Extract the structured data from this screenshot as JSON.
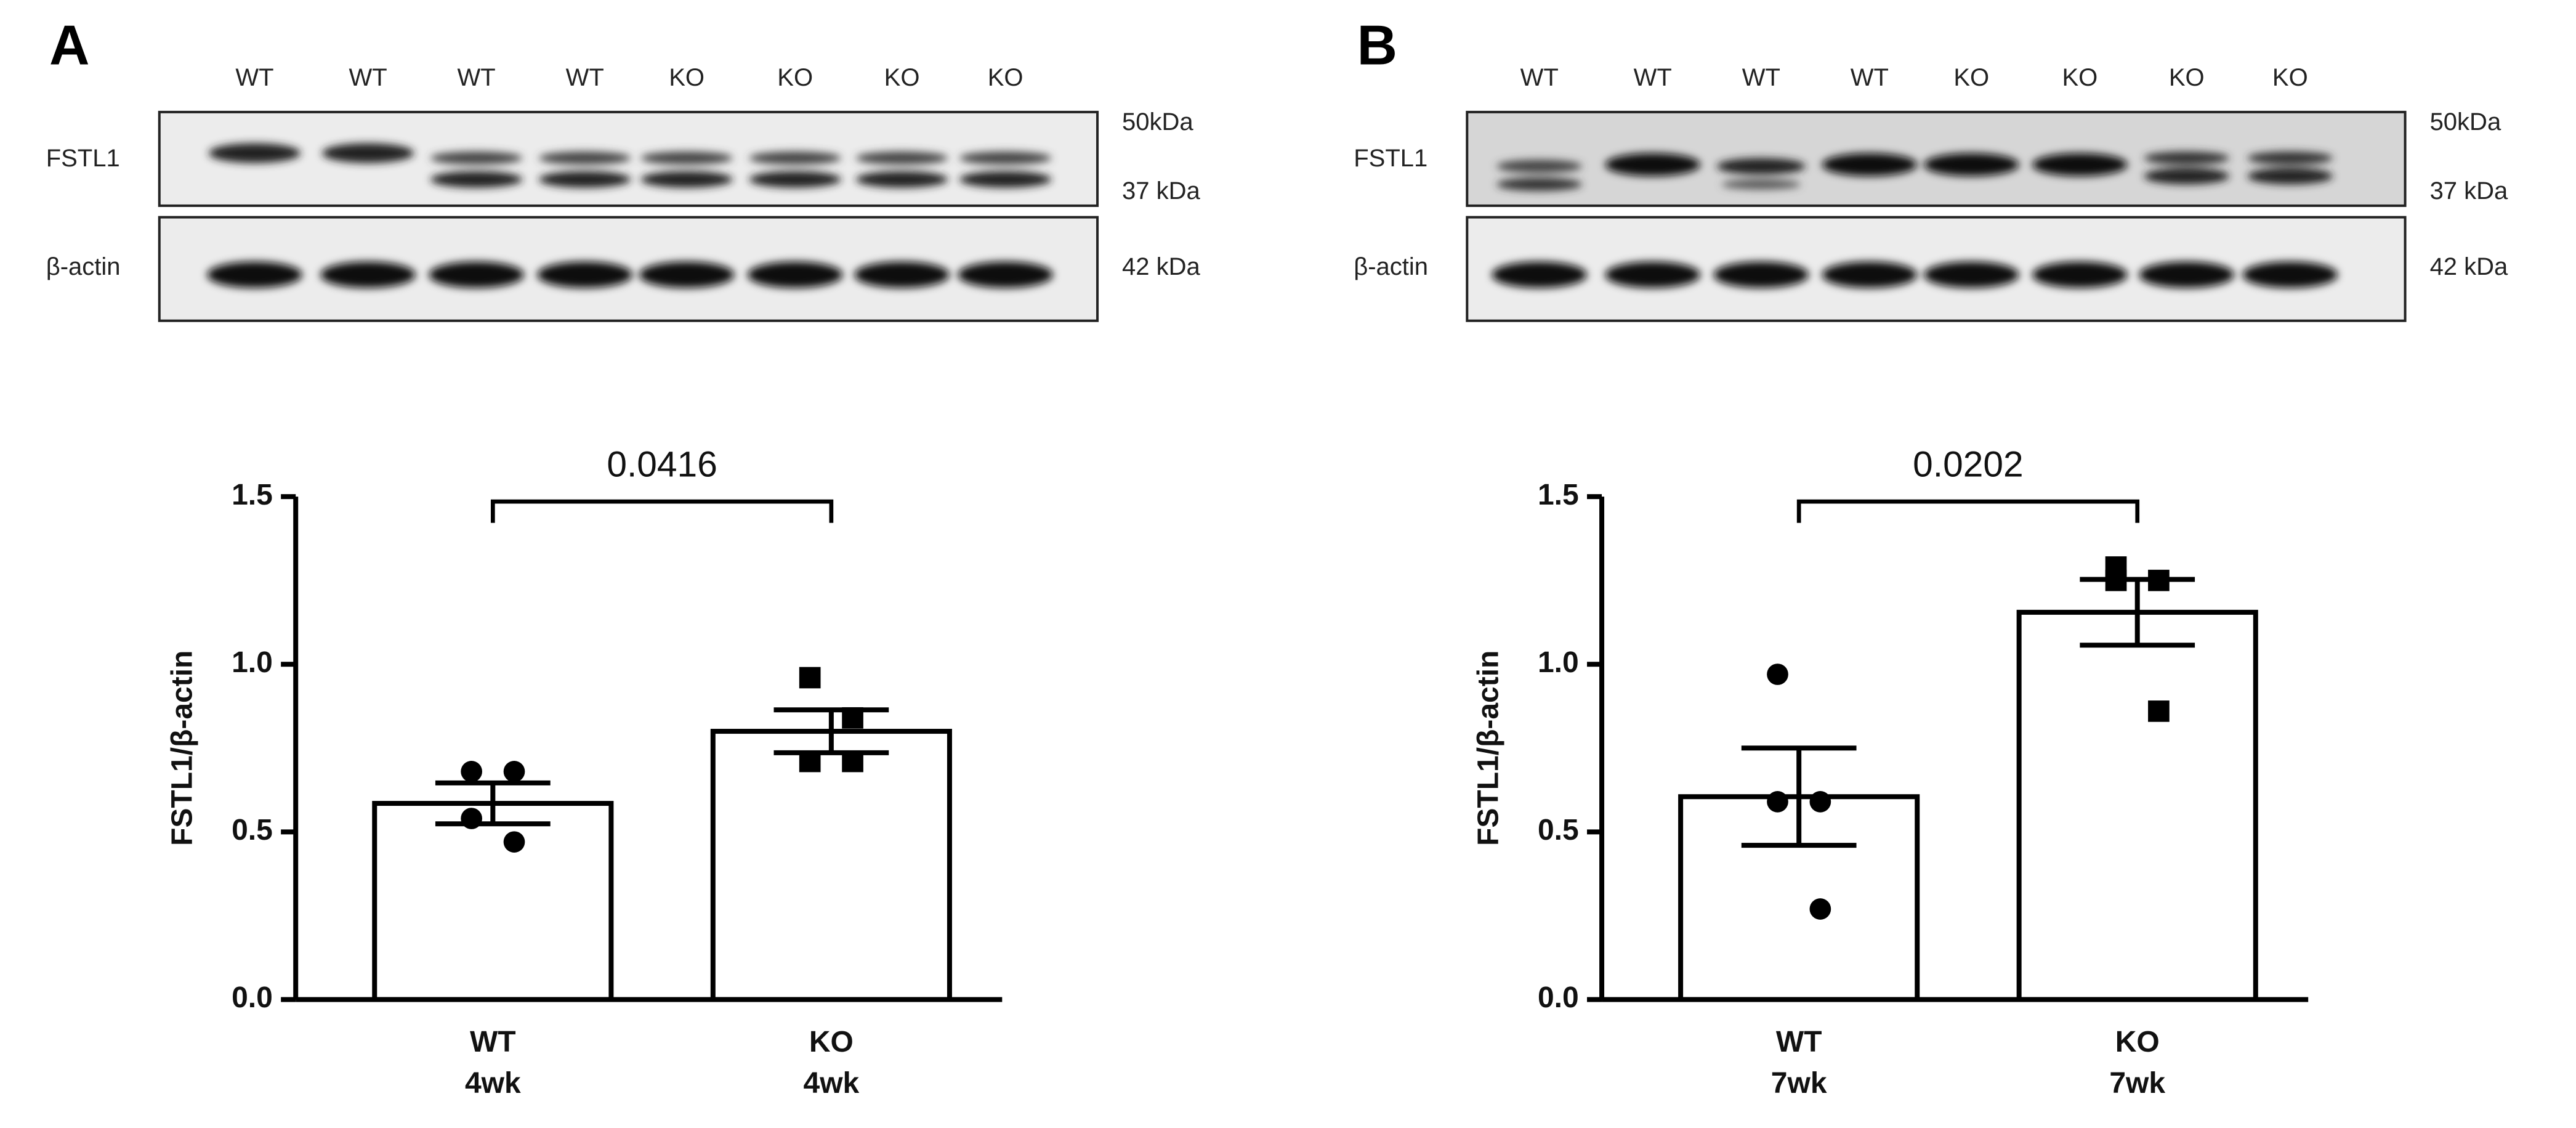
{
  "blots": [
    {
      "panel_label": "A",
      "lanes": [
        "WT",
        "WT",
        "WT",
        "WT",
        "KO",
        "KO",
        "KO",
        "KO"
      ],
      "proteins": [
        "FSTL1",
        "β-actin"
      ],
      "markers": [
        "50kDa",
        "37 kDa",
        "42 kDa"
      ]
    },
    {
      "panel_label": "B",
      "lanes": [
        "WT",
        "WT",
        "WT",
        "WT",
        "KO",
        "KO",
        "KO",
        "KO"
      ],
      "proteins": [
        "FSTL1",
        "β-actin"
      ],
      "markers": [
        "50kDa",
        "37 kDa",
        "42 kDa"
      ]
    }
  ],
  "chart_data": [
    {
      "type": "bar",
      "ylabel": "FSTL1/β-actin",
      "annotation": "0.0416",
      "categories": [
        [
          "WT",
          "4wk"
        ],
        [
          "KO",
          "4wk"
        ]
      ],
      "values": [
        0.585,
        0.8
      ],
      "errors": [
        0.061,
        0.064
      ],
      "points": [
        [
          0.68,
          0.68,
          0.54,
          0.47
        ],
        [
          0.96,
          0.84,
          0.71,
          0.71
        ]
      ],
      "point_markers": [
        "circle",
        "square"
      ],
      "color": "#ffffff",
      "ylim": [
        0,
        1.5
      ],
      "yticks": [
        {
          "value": 0,
          "label": "0.0"
        },
        {
          "value": 0.5,
          "label": "0.5"
        },
        {
          "value": 1,
          "label": "1.0"
        },
        {
          "value": 1.5,
          "label": "1.5"
        }
      ]
    },
    {
      "type": "bar",
      "ylabel": "FSTL1/β-actin",
      "annotation": "0.0202",
      "categories": [
        [
          "WT",
          "7wk"
        ],
        [
          "KO",
          "7wk"
        ]
      ],
      "values": [
        0.605,
        1.155
      ],
      "errors": [
        0.145,
        0.098
      ],
      "points": [
        [
          0.97,
          0.59,
          0.59,
          0.27
        ],
        [
          1.25,
          1.25,
          1.29,
          0.86
        ]
      ],
      "point_markers": [
        "circle",
        "square"
      ],
      "color": "#ffffff",
      "ylim": [
        0,
        1.5
      ],
      "yticks": [
        {
          "value": 0,
          "label": "0.0"
        },
        {
          "value": 0.5,
          "label": "0.5"
        },
        {
          "value": 1,
          "label": "1.0"
        },
        {
          "value": 1.5,
          "label": "1.5"
        }
      ]
    }
  ]
}
